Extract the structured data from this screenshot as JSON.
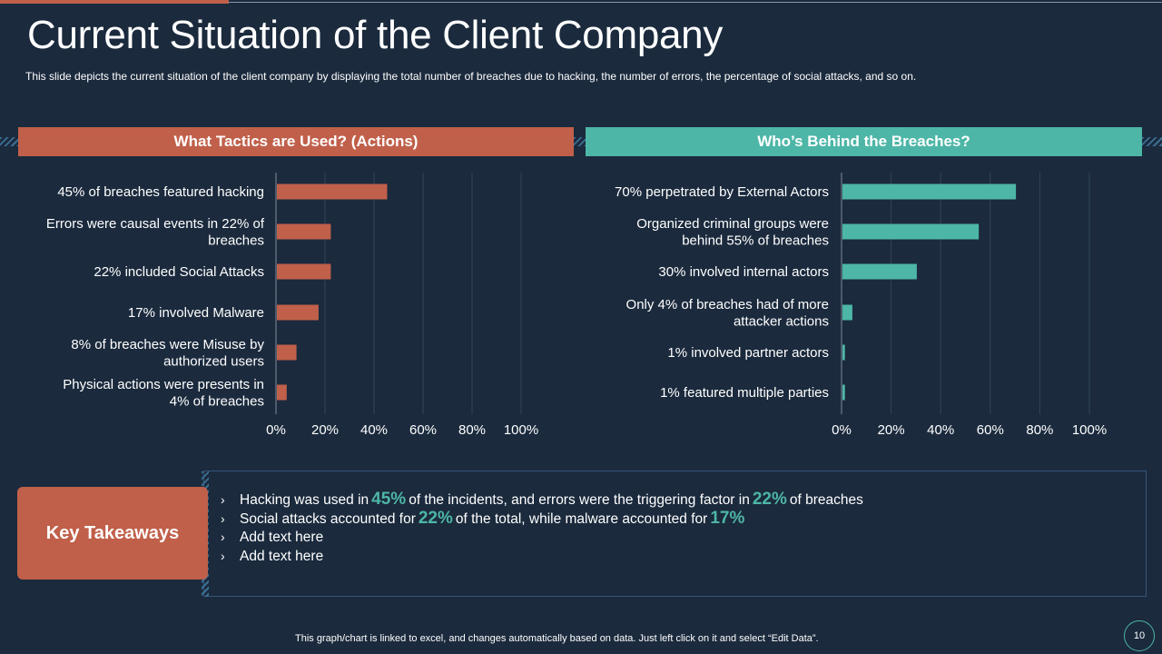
{
  "slide": {
    "title": "Current Situation of the Client Company",
    "subtitle": "This slide depicts the current situation of the client company by displaying the total number of breaches due to hacking, the number of errors,  the percentage of social attacks, and so on.",
    "footer": "This graph/chart is linked to excel,  and changes automatically based on data. Just left click on it and select “Edit Data”.",
    "page_number": "10"
  },
  "colors": {
    "background": "#1b2a3d",
    "accent_orange": "#c0604a",
    "accent_teal": "#4db6a7"
  },
  "takeaways": {
    "heading": "Key Takeaways",
    "items": [
      {
        "bullet": "›",
        "pre": "Hacking was used in",
        "hl1": "45%",
        "mid": "of the incidents, and errors were the triggering factor in",
        "hl2": "22%",
        "post": "of breaches"
      },
      {
        "bullet": "›",
        "pre": "Social attacks accounted for",
        "hl1": "22%",
        "mid": "of the total, while malware accounted for",
        "hl2": "17%",
        "post": ""
      },
      {
        "bullet": "›",
        "text": "Add text here"
      },
      {
        "bullet": "›",
        "text": "Add text here"
      }
    ]
  },
  "chart_data": [
    {
      "type": "bar",
      "orientation": "horizontal",
      "title": "What Tactics are Used? (Actions)",
      "color": "#c0604a",
      "categories": [
        "45% of breaches featured hacking",
        "Errors were causal events in 22% of breaches",
        "22% included Social Attacks",
        "17% involved Malware",
        "8% of breaches were Misuse by authorized users",
        "Physical actions were presents in 4% of breaches"
      ],
      "category_lines": [
        [
          "45% of breaches featured hacking"
        ],
        [
          "Errors were causal events in 22% of",
          "breaches"
        ],
        [
          "22% included Social Attacks"
        ],
        [
          "17% involved Malware"
        ],
        [
          "8% of breaches were Misuse by",
          "authorized users"
        ],
        [
          "Physical actions were presents in",
          "4% of breaches"
        ]
      ],
      "values": [
        45,
        22,
        22,
        17,
        8,
        4
      ],
      "xlim": [
        0,
        100
      ],
      "xticks": [
        "0%",
        "20%",
        "40%",
        "60%",
        "80%",
        "100%"
      ]
    },
    {
      "type": "bar",
      "orientation": "horizontal",
      "title": "Who’s Behind the Breaches?",
      "color": "#4db6a7",
      "categories": [
        "70% perpetrated by External Actors",
        "Organized criminal groups were behind 55% of breaches",
        "30% involved internal actors",
        "Only 4% of breaches had of more attacker actions",
        "1% involved partner actors",
        "1% featured multiple parties"
      ],
      "category_lines": [
        [
          "70% perpetrated by External Actors"
        ],
        [
          "Organized criminal groups were",
          "behind 55% of breaches"
        ],
        [
          "30% involved internal actors"
        ],
        [
          "Only 4% of breaches had of more",
          "attacker actions"
        ],
        [
          "1% involved partner actors"
        ],
        [
          "1% featured multiple parties"
        ]
      ],
      "values": [
        70,
        55,
        30,
        4,
        1,
        1
      ],
      "xlim": [
        0,
        100
      ],
      "xticks": [
        "0%",
        "20%",
        "40%",
        "60%",
        "80%",
        "100%"
      ]
    }
  ]
}
